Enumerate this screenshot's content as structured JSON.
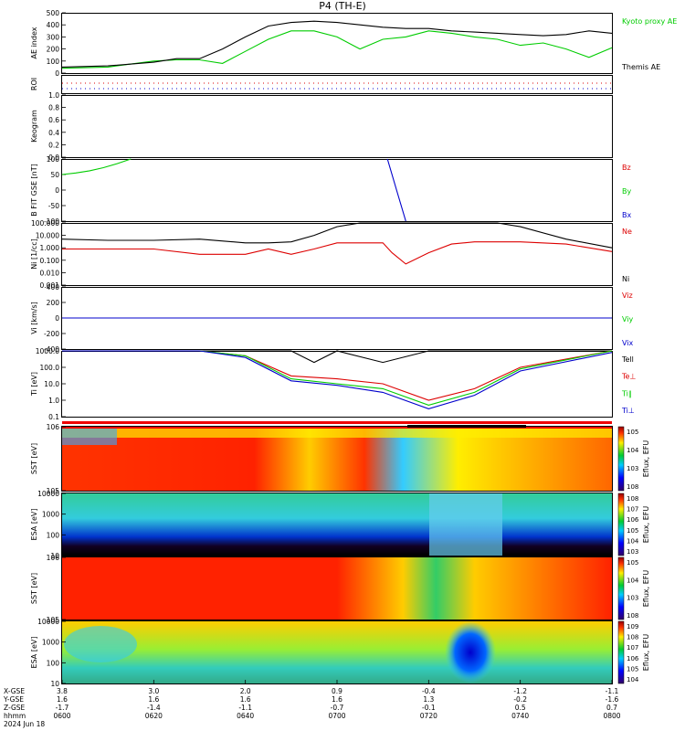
{
  "title": "P4 (TH-E)",
  "date_label": "2024 Jun 18",
  "time_row_label": "hhmm",
  "orbit_rows": [
    {
      "label": "X-GSE",
      "values": [
        "3.8",
        "3.0",
        "2.0",
        "0.9",
        "-0.4",
        "-1.2",
        "-1.1"
      ]
    },
    {
      "label": "Y-GSE",
      "values": [
        "1.6",
        "1.6",
        "1.6",
        "1.6",
        "1.3",
        "-0.2",
        "-1.6"
      ]
    },
    {
      "label": "Z-GSE",
      "values": [
        "-1.7",
        "-1.4",
        "-1.1",
        "-0.7",
        "-0.1",
        "0.5",
        "0.7"
      ]
    }
  ],
  "time_ticks": [
    "0600",
    "0620",
    "0640",
    "0700",
    "0720",
    "0740",
    "0800"
  ],
  "colors": {
    "black": "#000000",
    "green": "#00cc00",
    "red": "#dd0000",
    "blue": "#0000cc"
  },
  "colorbar_label": "Eflux, EFU",
  "chart_data": [
    {
      "panel": "ae_index",
      "type": "line",
      "ylabel": "AE index",
      "ylim": [
        0,
        500
      ],
      "yticks": [
        "0",
        "100",
        "200",
        "300",
        "400",
        "500"
      ],
      "series": [
        {
          "name": "Kyoto proxy AE",
          "color": "#00cc00",
          "x": [
            0,
            10,
            20,
            25,
            30,
            35,
            40,
            45,
            50,
            55,
            60,
            65,
            70,
            75,
            80,
            85,
            90,
            95,
            100,
            105,
            110,
            115,
            120
          ],
          "y": [
            40,
            50,
            100,
            110,
            110,
            80,
            180,
            280,
            350,
            350,
            300,
            200,
            280,
            300,
            350,
            330,
            300,
            280,
            230,
            250,
            200,
            130,
            210
          ]
        },
        {
          "name": "Themis AE",
          "color": "#000000",
          "x": [
            0,
            10,
            20,
            25,
            30,
            35,
            40,
            45,
            50,
            55,
            60,
            65,
            70,
            75,
            80,
            85,
            90,
            95,
            100,
            105,
            110,
            115,
            120
          ],
          "y": [
            50,
            60,
            90,
            120,
            120,
            200,
            300,
            390,
            420,
            430,
            420,
            400,
            380,
            370,
            370,
            350,
            340,
            330,
            320,
            310,
            320,
            350,
            330
          ]
        }
      ]
    },
    {
      "panel": "roi",
      "type": "line",
      "ylabel": "ROI"
    },
    {
      "panel": "keogram",
      "type": "heatmap",
      "ylabel": "Keogram",
      "ylim": [
        0.0,
        1.0
      ],
      "yticks": [
        "0.0",
        "0.2",
        "0.4",
        "0.6",
        "0.8",
        "1.0"
      ]
    },
    {
      "panel": "b_fgs",
      "type": "line",
      "ylabel": "B FIT GSE [nT]",
      "ylim": [
        -100,
        100
      ],
      "yticks": [
        "-100",
        "-50",
        "0",
        "50",
        "100"
      ],
      "series": [
        {
          "name": "Bz",
          "color": "#dd0000",
          "x": [],
          "y": []
        },
        {
          "name": "By",
          "color": "#00cc00",
          "x": [
            0,
            3,
            6,
            9,
            12,
            15
          ],
          "y": [
            50,
            55,
            62,
            72,
            85,
            100
          ]
        },
        {
          "name": "Bx",
          "color": "#0000cc",
          "x": [
            71,
            73,
            75
          ],
          "y": [
            100,
            0,
            -100
          ]
        }
      ]
    },
    {
      "panel": "density",
      "type": "line",
      "ylabel": "Ni [1/cc]",
      "yscale": "log",
      "ylim": [
        0.001,
        100
      ],
      "yticks": [
        "0.001",
        "0.010",
        "0.100",
        "1.000",
        "10.000",
        "100.000"
      ],
      "series": [
        {
          "name": "Ne",
          "color": "#dd0000",
          "x": [
            0,
            10,
            20,
            30,
            40,
            45,
            50,
            55,
            60,
            65,
            70,
            72,
            75,
            80,
            85,
            90,
            95,
            100,
            110,
            120
          ],
          "y": [
            0.8,
            0.8,
            0.8,
            0.3,
            0.3,
            0.8,
            0.3,
            0.8,
            2.5,
            2.5,
            2.5,
            0.4,
            0.05,
            0.4,
            2.0,
            3.0,
            3.0,
            3.0,
            2.0,
            0.5
          ]
        },
        {
          "name": "Ni",
          "color": "#000000",
          "x": [
            0,
            10,
            20,
            30,
            40,
            45,
            50,
            55,
            60,
            65,
            70,
            75,
            80,
            85,
            90,
            95,
            100,
            110,
            120
          ],
          "y": [
            5,
            4,
            4,
            5,
            2.5,
            2.5,
            3,
            10,
            50,
            100,
            100,
            100,
            100,
            100,
            100,
            100,
            50,
            5,
            1
          ]
        }
      ]
    },
    {
      "panel": "velocity",
      "type": "line",
      "ylabel": "Vi [km/s]",
      "ylim": [
        -400,
        400
      ],
      "yticks": [
        "-400",
        "-200",
        "0",
        "200",
        "400"
      ],
      "series": [
        {
          "name": "Viz",
          "color": "#dd0000",
          "x": [
            0,
            120
          ],
          "y": [
            0,
            0
          ]
        },
        {
          "name": "Viy",
          "color": "#00cc00",
          "x": [
            0,
            120
          ],
          "y": [
            0,
            0
          ]
        },
        {
          "name": "Vix",
          "color": "#0000cc",
          "x": [
            0,
            120
          ],
          "y": [
            0,
            0
          ]
        }
      ]
    },
    {
      "panel": "temperature",
      "type": "line",
      "ylabel": "Ti [eV]",
      "yscale": "log",
      "ylim": [
        0.1,
        1000
      ],
      "yticks": [
        "0.1",
        "1.0",
        "10.0",
        "100.0",
        "1000.0"
      ],
      "series": [
        {
          "name": "Tell",
          "color": "#000000",
          "x": [
            0,
            20,
            30,
            40,
            50,
            55,
            60,
            70,
            80,
            90,
            100,
            120
          ],
          "y": [
            1000,
            1000,
            1000,
            1000,
            1000,
            200,
            1000,
            200,
            1000,
            1000,
            1000,
            1000
          ]
        },
        {
          "name": "Te⊥",
          "color": "#dd0000",
          "x": [
            0,
            20,
            30,
            40,
            50,
            60,
            70,
            80,
            90,
            100,
            120
          ],
          "y": [
            1000,
            1000,
            1000,
            500,
            30,
            20,
            10,
            1,
            5,
            100,
            1000
          ]
        },
        {
          "name": "Ti∥",
          "color": "#00cc00",
          "x": [
            0,
            20,
            30,
            40,
            50,
            60,
            70,
            80,
            90,
            100,
            120
          ],
          "y": [
            1000,
            1000,
            1000,
            500,
            20,
            10,
            5,
            0.5,
            3,
            80,
            1000
          ]
        },
        {
          "name": "Ti⊥",
          "color": "#0000cc",
          "x": [
            0,
            20,
            30,
            40,
            50,
            60,
            70,
            80,
            90,
            100,
            120
          ],
          "y": [
            1000,
            1000,
            1000,
            400,
            15,
            8,
            3,
            0.3,
            2,
            60,
            800
          ]
        }
      ]
    },
    {
      "panel": "sst_ions",
      "type": "heatmap",
      "ylabel": "SST [eV]",
      "yticks": [
        "10^5",
        "10^6"
      ],
      "cbar_ticks": [
        "10^5",
        "10^4",
        "10^3",
        "10^8"
      ]
    },
    {
      "panel": "esa_ions",
      "type": "heatmap",
      "ylabel": "ESA [eV]",
      "yticks": [
        "10",
        "100",
        "1000",
        "10000"
      ],
      "cbar_ticks": [
        "10^8",
        "10^7",
        "10^6",
        "10^5",
        "10^4",
        "10^3"
      ]
    },
    {
      "panel": "sst_electrons",
      "type": "heatmap",
      "ylabel": "SST [eV]",
      "yticks": [
        "10^5",
        "10^6"
      ],
      "cbar_ticks": [
        "10^5",
        "10^4",
        "10^3",
        "10^8"
      ]
    },
    {
      "panel": "esa_electrons",
      "type": "heatmap",
      "ylabel": "ESA [eV]",
      "yticks": [
        "10",
        "100",
        "1000",
        "10000"
      ],
      "cbar_ticks": [
        "10^9",
        "10^8",
        "10^7",
        "10^6",
        "10^5",
        "10^4"
      ]
    }
  ]
}
